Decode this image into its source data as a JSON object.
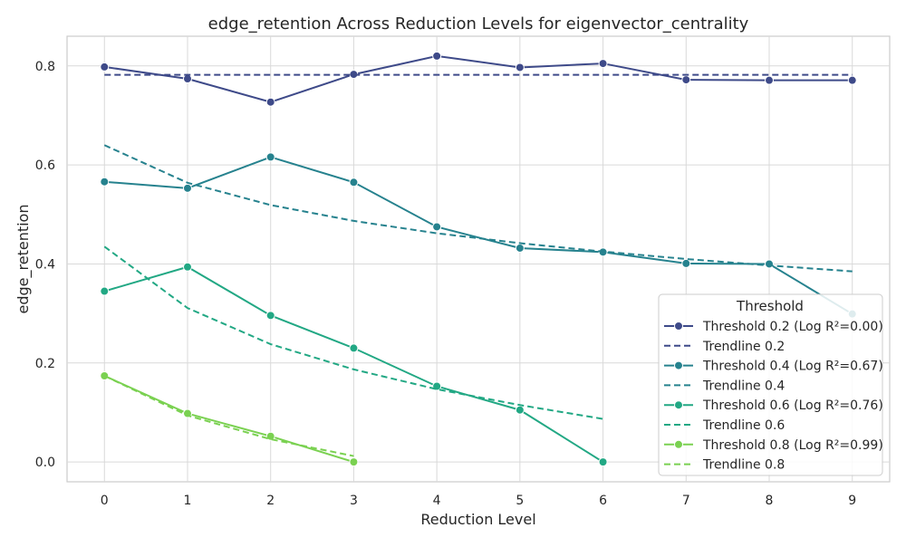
{
  "chart_data": {
    "type": "line",
    "title": "edge_retention Across Reduction Levels for eigenvector_centrality",
    "xlabel": "Reduction Level",
    "ylabel": "edge_retention",
    "xlim": [
      -0.45,
      9.45
    ],
    "ylim": [
      -0.04,
      0.86
    ],
    "xticks": [
      0,
      1,
      2,
      3,
      4,
      5,
      6,
      7,
      8,
      9
    ],
    "xtick_labels": [
      "0",
      "1",
      "2",
      "3",
      "4",
      "5",
      "6",
      "7",
      "8",
      "9"
    ],
    "yticks": [
      0.0,
      0.2,
      0.4,
      0.6,
      0.8
    ],
    "ytick_labels": [
      "0.0",
      "0.2",
      "0.4",
      "0.6",
      "0.8"
    ],
    "grid": true,
    "legend": {
      "title": "Threshold",
      "position": "lower-right"
    },
    "series": [
      {
        "name": "Threshold 0.2 (Log R²=0.00)",
        "style": "solid-marker",
        "color": "#3e4a89",
        "x": [
          0,
          1,
          2,
          3,
          4,
          5,
          6,
          7,
          8,
          9
        ],
        "y": [
          0.798,
          0.774,
          0.727,
          0.783,
          0.82,
          0.797,
          0.805,
          0.772,
          0.771,
          0.771
        ]
      },
      {
        "name": "Trendline 0.2",
        "style": "dashed",
        "color": "#3e4a89",
        "x": [
          0,
          1,
          2,
          3,
          4,
          5,
          6,
          7,
          8,
          9
        ],
        "y": [
          0.782,
          0.782,
          0.782,
          0.782,
          0.782,
          0.782,
          0.782,
          0.782,
          0.782,
          0.782
        ]
      },
      {
        "name": "Threshold 0.4 (Log R²=0.67)",
        "style": "solid-marker",
        "color": "#26828e",
        "x": [
          0,
          1,
          2,
          3,
          4,
          5,
          6,
          7,
          8,
          9
        ],
        "y": [
          0.566,
          0.553,
          0.616,
          0.565,
          0.475,
          0.432,
          0.424,
          0.401,
          0.4,
          0.299
        ]
      },
      {
        "name": "Trendline 0.4",
        "style": "dashed",
        "color": "#26828e",
        "x": [
          0,
          1,
          2,
          3,
          4,
          5,
          6,
          7,
          8,
          9
        ],
        "y": [
          0.64,
          0.564,
          0.519,
          0.487,
          0.462,
          0.442,
          0.425,
          0.41,
          0.397,
          0.385
        ]
      },
      {
        "name": "Threshold 0.6 (Log R²=0.76)",
        "style": "solid-marker",
        "color": "#22a884",
        "x": [
          0,
          1,
          2,
          3,
          4,
          5,
          6
        ],
        "y": [
          0.345,
          0.394,
          0.296,
          0.23,
          0.153,
          0.105,
          0.0
        ]
      },
      {
        "name": "Trendline 0.6",
        "style": "dashed",
        "color": "#22a884",
        "x": [
          0,
          1,
          2,
          3,
          4,
          5,
          6
        ],
        "y": [
          0.435,
          0.311,
          0.238,
          0.187,
          0.147,
          0.115,
          0.087
        ]
      },
      {
        "name": "Threshold 0.8 (Log R²=0.99)",
        "style": "solid-marker",
        "color": "#7ad151",
        "x": [
          0,
          1,
          2,
          3
        ],
        "y": [
          0.174,
          0.098,
          0.052,
          0.0
        ]
      },
      {
        "name": "Trendline 0.8",
        "style": "dashed",
        "color": "#7ad151",
        "x": [
          0,
          1,
          2,
          3
        ],
        "y": [
          0.174,
          0.094,
          0.046,
          0.012
        ]
      }
    ]
  }
}
